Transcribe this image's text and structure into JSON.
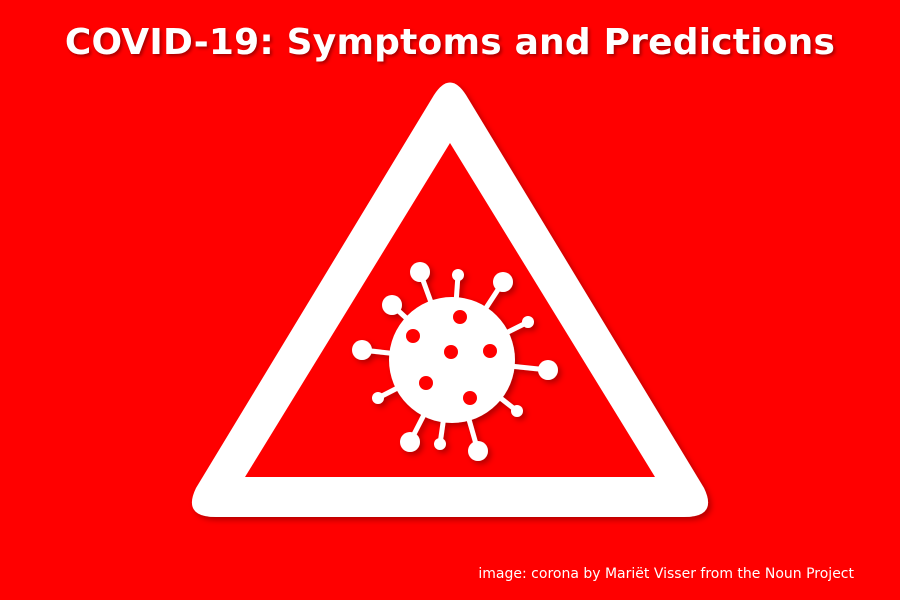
{
  "title": "COVID-19: Symptoms and Predictions",
  "credit": "image: corona by Mariët Visser from the Noun Project",
  "icon": "coronavirus-warning-triangle-icon",
  "colors": {
    "background": "#ff0000",
    "foreground": "#ffffff"
  }
}
